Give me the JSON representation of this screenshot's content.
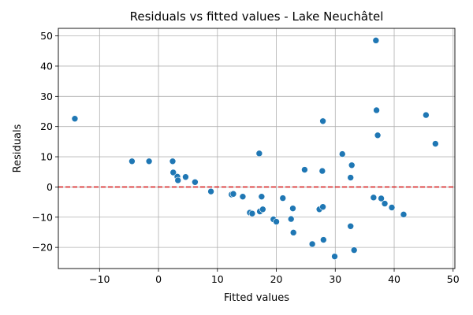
{
  "chart_data": {
    "type": "scatter",
    "title": "Residuals vs fitted values - Lake Neuchâtel",
    "xlabel": "Fitted values",
    "ylabel": "Residuals",
    "xlim": [
      -17,
      50.3
    ],
    "ylim": [
      -27,
      52.5
    ],
    "xticks": [
      -10,
      0,
      10,
      20,
      30,
      40,
      50
    ],
    "yticks": [
      -20,
      -10,
      0,
      10,
      20,
      30,
      40,
      50
    ],
    "xtick_labels": [
      "−10",
      "0",
      "10",
      "20",
      "30",
      "40",
      "50"
    ],
    "ytick_labels": [
      "−20",
      "−10",
      "0",
      "10",
      "20",
      "30",
      "40",
      "50"
    ],
    "grid": true,
    "reference_line": {
      "y": 0,
      "color": "#d62728",
      "style": "dashed"
    },
    "point_color": "#1f77b4",
    "points": [
      {
        "x": -14.2,
        "y": 22.6
      },
      {
        "x": -4.5,
        "y": 8.5
      },
      {
        "x": -1.6,
        "y": 8.5
      },
      {
        "x": 2.4,
        "y": 8.5
      },
      {
        "x": 2.5,
        "y": 4.8
      },
      {
        "x": 3.2,
        "y": 3.4
      },
      {
        "x": 3.3,
        "y": 2.2
      },
      {
        "x": 4.6,
        "y": 3.3
      },
      {
        "x": 6.2,
        "y": 1.6
      },
      {
        "x": 8.9,
        "y": -1.5
      },
      {
        "x": 12.4,
        "y": -2.5
      },
      {
        "x": 12.7,
        "y": -2.3
      },
      {
        "x": 14.3,
        "y": -3.2
      },
      {
        "x": 15.5,
        "y": -8.5
      },
      {
        "x": 15.9,
        "y": -8.8
      },
      {
        "x": 17.1,
        "y": 11.1
      },
      {
        "x": 17.2,
        "y": -8.1
      },
      {
        "x": 17.5,
        "y": -3.2
      },
      {
        "x": 17.7,
        "y": -7.4
      },
      {
        "x": 19.5,
        "y": -10.7
      },
      {
        "x": 20.0,
        "y": -11.5
      },
      {
        "x": 21.1,
        "y": -3.7
      },
      {
        "x": 22.5,
        "y": -10.6
      },
      {
        "x": 22.8,
        "y": -7.1
      },
      {
        "x": 22.9,
        "y": -15.1
      },
      {
        "x": 24.8,
        "y": 5.7
      },
      {
        "x": 26.1,
        "y": -18.9
      },
      {
        "x": 27.3,
        "y": -7.4
      },
      {
        "x": 27.8,
        "y": 5.3
      },
      {
        "x": 27.9,
        "y": -6.6
      },
      {
        "x": 27.9,
        "y": 21.8
      },
      {
        "x": 28.0,
        "y": -17.5
      },
      {
        "x": 29.9,
        "y": -23.0
      },
      {
        "x": 31.2,
        "y": 10.9
      },
      {
        "x": 32.6,
        "y": 3.1
      },
      {
        "x": 32.6,
        "y": -13.0
      },
      {
        "x": 32.8,
        "y": 7.2
      },
      {
        "x": 33.2,
        "y": -20.9
      },
      {
        "x": 36.5,
        "y": -3.5
      },
      {
        "x": 36.9,
        "y": 48.5
      },
      {
        "x": 37.0,
        "y": 25.4
      },
      {
        "x": 37.2,
        "y": 17.1
      },
      {
        "x": 37.8,
        "y": -3.8
      },
      {
        "x": 38.4,
        "y": -5.5
      },
      {
        "x": 39.6,
        "y": -6.8
      },
      {
        "x": 41.6,
        "y": -9.1
      },
      {
        "x": 45.4,
        "y": 23.8
      },
      {
        "x": 47.0,
        "y": 14.3
      }
    ]
  }
}
